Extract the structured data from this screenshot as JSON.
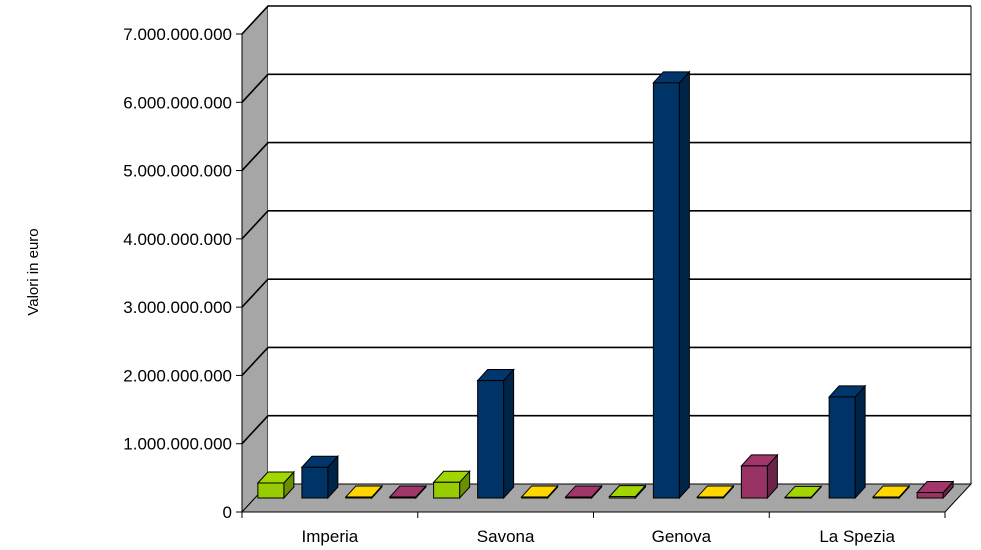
{
  "chart_data": {
    "type": "bar",
    "style": "3d-clustered-column",
    "categories": [
      "Imperia",
      "Savona",
      "Genova",
      "La Spezia"
    ],
    "series": [
      {
        "color": "#99CC00",
        "values": [
          220000000,
          230000000,
          20000000,
          10000000
        ]
      },
      {
        "color": "#003366",
        "values": [
          450000000,
          1720000000,
          6080000000,
          1480000000
        ]
      },
      {
        "color": "#FFCC00",
        "values": [
          15000000,
          15000000,
          15000000,
          15000000
        ]
      },
      {
        "color": "#993366",
        "values": [
          15000000,
          15000000,
          470000000,
          80000000
        ]
      }
    ],
    "y_ticks": [
      "0",
      "1.000.000.000",
      "2.000.000.000",
      "3.000.000.000",
      "4.000.000.000",
      "5.000.000.000",
      "6.000.000.000",
      "7.000.000.000"
    ],
    "ylim": [
      0,
      7000000000
    ],
    "ylabel": "Valori in euro",
    "xlabel": "",
    "grid": true,
    "legend": "none"
  }
}
